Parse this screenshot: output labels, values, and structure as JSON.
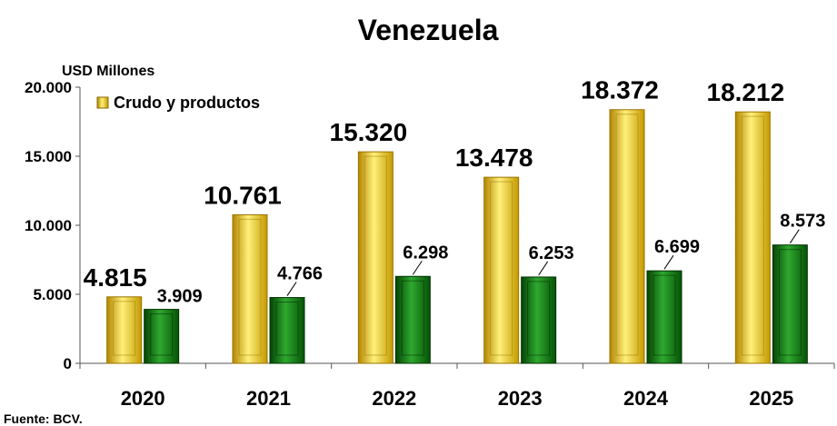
{
  "chart_data": {
    "type": "bar",
    "title": "Venezuela",
    "ylabel": "USD Millones",
    "categories": [
      "2020",
      "2021",
      "2022",
      "2023",
      "2024",
      "2025"
    ],
    "ylim": [
      0,
      20000
    ],
    "yticks": [
      0,
      5000,
      10000,
      15000,
      20000
    ],
    "ytick_labels": [
      "0",
      "5.000",
      "10.000",
      "15.000",
      "20.000"
    ],
    "series": [
      {
        "name": "Crudo y productos",
        "values": [
          4815,
          10761,
          15320,
          13478,
          18372,
          18212
        ],
        "labels": [
          "4.815",
          "10.761",
          "15.320",
          "13.478",
          "18.372",
          "18.212"
        ],
        "color": "#f2c200"
      },
      {
        "values": [
          3909,
          4766,
          6298,
          6253,
          6699,
          8573
        ],
        "labels": [
          "3.909",
          "4.766",
          "6.298",
          "6.253",
          "6.699",
          "8.573"
        ],
        "color": "#0c7a0c"
      }
    ],
    "legend": "top-left",
    "grid": false
  },
  "source": "Fuente: BCV.",
  "colors": {
    "gold_light": "#fff07a",
    "gold": "#f2c200",
    "gold_dark": "#b38600",
    "green_light": "#2fa82f",
    "green": "#0c7a0c",
    "green_dark": "#054405"
  }
}
